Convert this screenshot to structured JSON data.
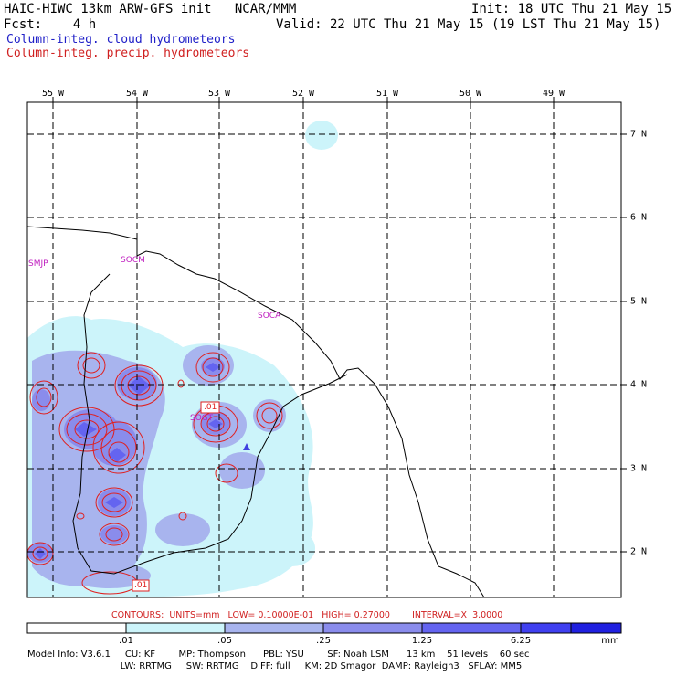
{
  "header": {
    "model_title": "HAIC-HIWC 13km ARW-GFS init   NCAR/MMM",
    "init": "Init: 18 UTC Thu 21 May 15",
    "fcst": "Fcst:    4 h",
    "valid": "Valid: 22 UTC Thu 21 May 15 (19 LST Thu 21 May 15)",
    "field_cloud": "Column-integ. cloud hydrometeors",
    "field_precip": "Column-integ. precip. hydrometeors"
  },
  "map": {
    "lon_labels": [
      "55 W",
      "54 W",
      "53 W",
      "52 W",
      "51 W",
      "50 W",
      "49 W"
    ],
    "lat_labels": [
      "7 N",
      "6 N",
      "5 N",
      "4 N",
      "3 N",
      "2 N"
    ],
    "stations": [
      {
        "id": "smjp",
        "label": "SMJP"
      },
      {
        "id": "socm",
        "label": "SOCM"
      },
      {
        "id": "soca",
        "label": "SOCA"
      },
      {
        "id": "sogt",
        "label": "SOGT"
      }
    ],
    "contour_labels": [
      ".01",
      ".01"
    ],
    "colors": {
      "cloud_1": "#ccf4fa",
      "cloud_2": "#a8b4ee",
      "cloud_3": "#8a8cec",
      "cloud_4": "#6464f0",
      "precip": "#e02020",
      "grid": "#000000",
      "station": "#c020c0"
    }
  },
  "contours_legend": {
    "text": "CONTOURS:  UNITS=mm   LOW= 0.10000E-01   HIGH= 0.27000        INTERVAL=X  3.0000"
  },
  "colorbar": {
    "labels": [
      ".01",
      ".05",
      ".25",
      "1.25",
      "6.25"
    ],
    "unit": "mm",
    "colors": [
      "#ffffff",
      "#ccf4fa",
      "#a8b4ee",
      "#8a8cec",
      "#6464f0",
      "#4040f0",
      "#2020e0"
    ]
  },
  "model_info": {
    "line1": "Model Info: V3.6.1     CU: KF        MP: Thompson      PBL: YSU        SF: Noah LSM      13 km    51 levels    60 sec",
    "line2": "                                LW: RRTMG     SW: RRTMG    DIFF: full     KM: 2D Smagor  DAMP: Rayleigh3   SFLAY: MM5"
  }
}
